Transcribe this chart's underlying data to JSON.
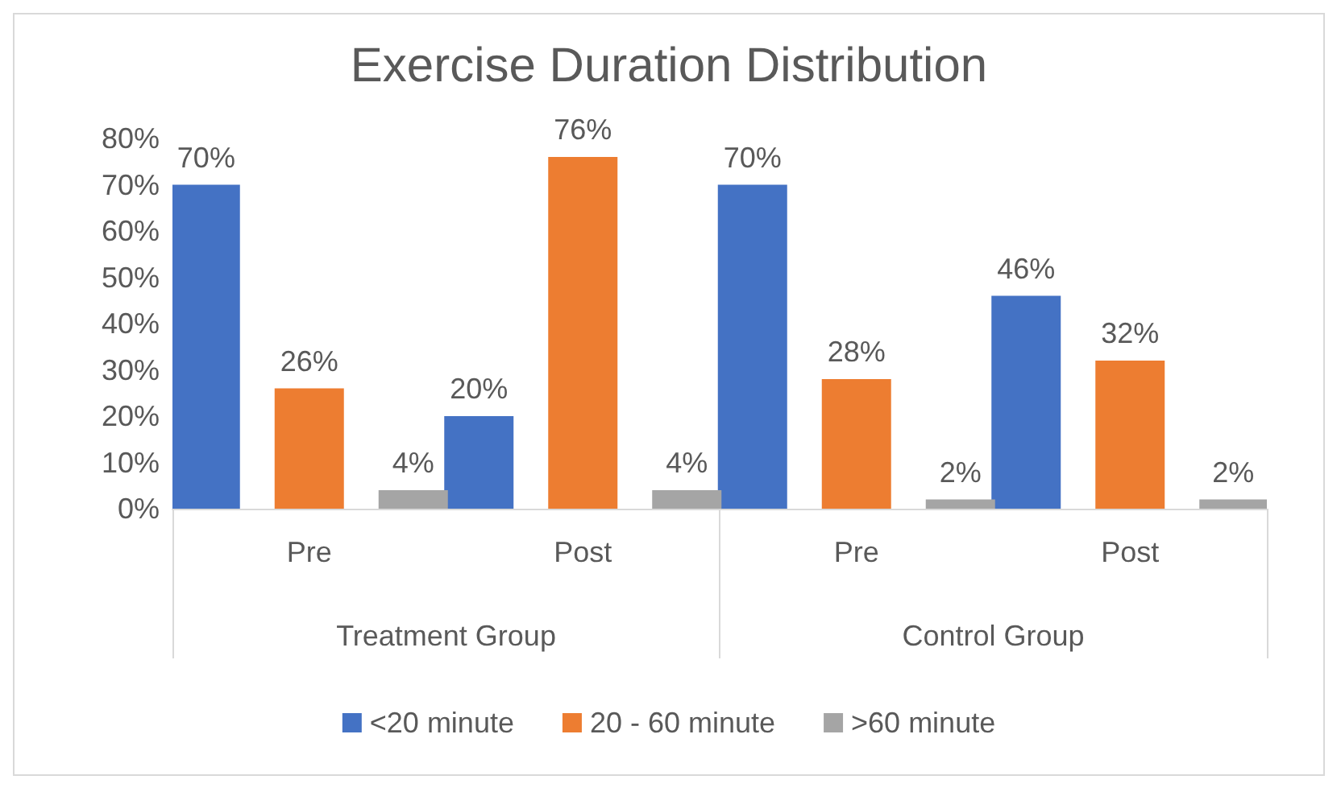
{
  "chart_data": {
    "type": "bar",
    "title": "Exercise Duration Distribution",
    "categories": [
      "Pre",
      "Post",
      "Pre",
      "Post"
    ],
    "annotations": [
      "Treatment Group",
      "Control Group"
    ],
    "series": [
      {
        "name": "<20 minute",
        "color": "#4472c4",
        "values": [
          70,
          20,
          70,
          46
        ],
        "value_labels": [
          "70%",
          "20%",
          "70%",
          "46%"
        ]
      },
      {
        "name": "20 - 60 minute",
        "color": "#ed7d31",
        "values": [
          26,
          76,
          28,
          32
        ],
        "value_labels": [
          "26%",
          "76%",
          "28%",
          "32%"
        ]
      },
      {
        "name": ">60 minute",
        "color": "#a5a5a5",
        "values": [
          4,
          4,
          2,
          2
        ],
        "value_labels": [
          "4%",
          "4%",
          "2%",
          "2%"
        ]
      }
    ],
    "ylim": [
      0,
      80
    ],
    "yticks": [
      {
        "value": 0,
        "label": "0%"
      },
      {
        "value": 10,
        "label": "10%"
      },
      {
        "value": 20,
        "label": "20%"
      },
      {
        "value": 30,
        "label": "30%"
      },
      {
        "value": 40,
        "label": "40%"
      },
      {
        "value": 50,
        "label": "50%"
      },
      {
        "value": 60,
        "label": "60%"
      },
      {
        "value": 70,
        "label": "70%"
      },
      {
        "value": 80,
        "label": "80%"
      }
    ],
    "grid": false,
    "legend": "bottom"
  }
}
